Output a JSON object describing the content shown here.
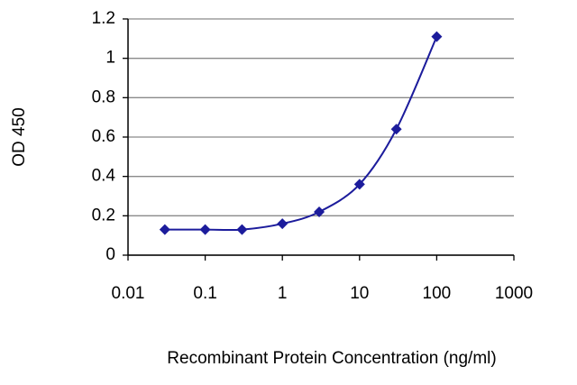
{
  "chart_data": {
    "type": "line",
    "xscale": "log",
    "x_label": "Recombinant Protein Concentration (ng/ml)",
    "y_label": "OD 450",
    "x": [
      0.03,
      0.1,
      0.3,
      1,
      3,
      10,
      30,
      100
    ],
    "series": [
      {
        "color": "#1c1c9c",
        "values": [
          0.13,
          0.13,
          0.13,
          0.16,
          0.22,
          0.36,
          0.64,
          1.11
        ]
      }
    ],
    "xlim": [
      0.01,
      1000
    ],
    "xticks": [
      0.01,
      0.1,
      1,
      10,
      100,
      1000
    ],
    "ylim": [
      0,
      1.2
    ],
    "yticks": [
      0,
      0.2,
      0.4,
      0.6,
      0.8,
      1,
      1.2
    ],
    "grid": true
  }
}
